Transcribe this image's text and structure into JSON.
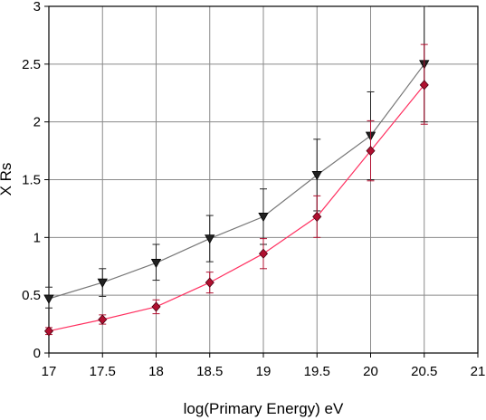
{
  "chart_data": {
    "type": "scatter",
    "title": "",
    "xlabel": "log(Primary Energy) eV",
    "ylabel": "X Rs",
    "xlim": [
      17,
      21
    ],
    "ylim": [
      0,
      3
    ],
    "xticks": [
      "17",
      "17.5",
      "18",
      "18.5",
      "19",
      "19.5",
      "20",
      "20.5",
      "21"
    ],
    "yticks": [
      "0",
      "0.5",
      "1",
      "1.5",
      "2",
      "2.5",
      "3"
    ],
    "grid": true,
    "legend": "none",
    "series": [
      {
        "marker": "triangle-down",
        "color": "#222222",
        "line_color": "#777777",
        "x": [
          17,
          17.5,
          18,
          18.5,
          19,
          19.5,
          20,
          20.5
        ],
        "y": [
          0.47,
          0.61,
          0.78,
          0.99,
          1.18,
          1.54,
          1.88,
          2.5
        ],
        "err_low": [
          0.39,
          0.49,
          0.63,
          0.79,
          0.94,
          1.23,
          1.5,
          2.0
        ],
        "err_high": [
          0.57,
          0.73,
          0.94,
          1.19,
          1.42,
          1.85,
          2.26,
          3.0
        ]
      },
      {
        "marker": "diamond",
        "color": "#b01030",
        "line_color": "#ff3060",
        "x": [
          17,
          17.5,
          18,
          18.5,
          19,
          19.5,
          20,
          20.5
        ],
        "y": [
          0.19,
          0.29,
          0.4,
          0.61,
          0.86,
          1.18,
          1.75,
          2.32
        ],
        "err_low": [
          0.16,
          0.25,
          0.34,
          0.52,
          0.73,
          1.0,
          1.49,
          1.98
        ],
        "err_high": [
          0.22,
          0.33,
          0.46,
          0.7,
          0.99,
          1.36,
          2.01,
          2.67
        ]
      }
    ]
  }
}
